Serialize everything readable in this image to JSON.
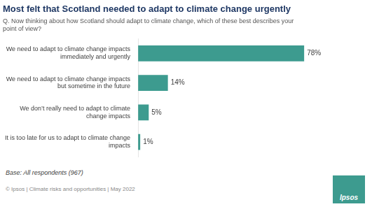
{
  "chart_data": {
    "type": "bar",
    "orientation": "horizontal",
    "title": "Most felt that Scotland needed to adapt to climate change urgently",
    "subtitle": "Q. Now thinking about how Scotland should adapt to climate change, which of these best describes your\npoint of view?",
    "categories": [
      "We need to adapt to climate change impacts\nimmediately and urgently",
      "We need to adapt to climate change impacts\nbut sometime in the future",
      "We don’t really need to adapt to climate\nchange impacts",
      "It is too late for us to adapt to climate change\nimpacts"
    ],
    "values": [
      78,
      14,
      5,
      1
    ],
    "value_labels": [
      "78%",
      "14%",
      "5%",
      "1%"
    ],
    "data_labels": true,
    "color": "#3d9b8f",
    "xlim": [
      0,
      100
    ],
    "grid": false,
    "tick_labels": "y",
    "annotations": [
      "Base: All respondents (967)",
      "© Ipsos | Climate risks and opportunities | May 2022",
      "Ipsos"
    ]
  }
}
